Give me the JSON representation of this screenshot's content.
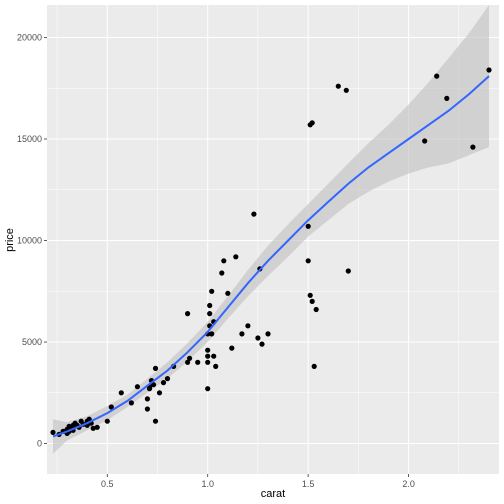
{
  "chart_data": {
    "type": "scatter",
    "xlabel": "carat",
    "ylabel": "price",
    "xlim": [
      0.2,
      2.45
    ],
    "ylim": [
      -1500,
      21600
    ],
    "x_ticks": [
      0.5,
      1.0,
      1.5,
      2.0
    ],
    "x_tick_labels": [
      "0.5",
      "1.0",
      "1.5",
      "2.0"
    ],
    "y_ticks": [
      0,
      5000,
      10000,
      15000,
      20000
    ],
    "y_tick_labels": [
      "0",
      "5000",
      "10000",
      "15000",
      "20000"
    ],
    "grid": true,
    "panel_background": "#ebebeb",
    "point_color": "#000000",
    "smooth_color": "#3366ff",
    "ribbon_color": "#bfbfbf",
    "points": [
      [
        0.23,
        550
      ],
      [
        0.26,
        450
      ],
      [
        0.28,
        600
      ],
      [
        0.3,
        700
      ],
      [
        0.3,
        500
      ],
      [
        0.31,
        850
      ],
      [
        0.31,
        600
      ],
      [
        0.32,
        800
      ],
      [
        0.33,
        650
      ],
      [
        0.33,
        900
      ],
      [
        0.34,
        1000
      ],
      [
        0.35,
        900
      ],
      [
        0.36,
        800
      ],
      [
        0.37,
        1100
      ],
      [
        0.38,
        950
      ],
      [
        0.4,
        900
      ],
      [
        0.4,
        1100
      ],
      [
        0.41,
        1200
      ],
      [
        0.42,
        1000
      ],
      [
        0.43,
        750
      ],
      [
        0.45,
        800
      ],
      [
        0.5,
        1100
      ],
      [
        0.52,
        1800
      ],
      [
        0.57,
        2500
      ],
      [
        0.62,
        2000
      ],
      [
        0.65,
        2800
      ],
      [
        0.7,
        1700
      ],
      [
        0.7,
        2200
      ],
      [
        0.71,
        2700
      ],
      [
        0.71,
        2800
      ],
      [
        0.72,
        3100
      ],
      [
        0.73,
        2900
      ],
      [
        0.74,
        3700
      ],
      [
        0.74,
        1100
      ],
      [
        0.76,
        2500
      ],
      [
        0.78,
        3000
      ],
      [
        0.8,
        3200
      ],
      [
        0.83,
        3800
      ],
      [
        0.9,
        4000
      ],
      [
        0.9,
        6400
      ],
      [
        0.91,
        4200
      ],
      [
        0.95,
        4000
      ],
      [
        1.0,
        2700
      ],
      [
        1.0,
        4000
      ],
      [
        1.0,
        4300
      ],
      [
        1.0,
        4600
      ],
      [
        1.0,
        5400
      ],
      [
        1.01,
        6400
      ],
      [
        1.01,
        6800
      ],
      [
        1.01,
        5800
      ],
      [
        1.02,
        7500
      ],
      [
        1.02,
        5400
      ],
      [
        1.03,
        4300
      ],
      [
        1.03,
        6000
      ],
      [
        1.04,
        3800
      ],
      [
        1.07,
        8400
      ],
      [
        1.08,
        9000
      ],
      [
        1.1,
        7400
      ],
      [
        1.12,
        4700
      ],
      [
        1.14,
        9200
      ],
      [
        1.17,
        5400
      ],
      [
        1.2,
        5800
      ],
      [
        1.23,
        11300
      ],
      [
        1.25,
        5200
      ],
      [
        1.26,
        8600
      ],
      [
        1.27,
        4900
      ],
      [
        1.3,
        5400
      ],
      [
        1.5,
        10700
      ],
      [
        1.5,
        9000
      ],
      [
        1.51,
        7300
      ],
      [
        1.51,
        15700
      ],
      [
        1.52,
        15800
      ],
      [
        1.52,
        7000
      ],
      [
        1.53,
        3800
      ],
      [
        1.54,
        6600
      ],
      [
        1.65,
        17600
      ],
      [
        1.69,
        17400
      ],
      [
        1.7,
        8500
      ],
      [
        2.08,
        14900
      ],
      [
        2.14,
        18100
      ],
      [
        2.19,
        17000
      ],
      [
        2.32,
        14600
      ],
      [
        2.4,
        18400
      ]
    ],
    "smooth": [
      [
        0.23,
        350
      ],
      [
        0.3,
        600
      ],
      [
        0.4,
        1000
      ],
      [
        0.5,
        1500
      ],
      [
        0.6,
        2100
      ],
      [
        0.7,
        2850
      ],
      [
        0.8,
        3600
      ],
      [
        0.9,
        4500
      ],
      [
        1.0,
        5500
      ],
      [
        1.1,
        6700
      ],
      [
        1.2,
        7900
      ],
      [
        1.3,
        9000
      ],
      [
        1.4,
        10000
      ],
      [
        1.5,
        11000
      ],
      [
        1.6,
        11900
      ],
      [
        1.7,
        12800
      ],
      [
        1.8,
        13600
      ],
      [
        1.9,
        14300
      ],
      [
        2.0,
        15000
      ],
      [
        2.1,
        15700
      ],
      [
        2.2,
        16400
      ],
      [
        2.3,
        17200
      ],
      [
        2.4,
        18100
      ]
    ],
    "ribbon": [
      [
        0.23,
        -500,
        1200
      ],
      [
        0.3,
        150,
        1050
      ],
      [
        0.4,
        650,
        1350
      ],
      [
        0.5,
        1150,
        1850
      ],
      [
        0.6,
        1800,
        2400
      ],
      [
        0.7,
        2500,
        3200
      ],
      [
        0.8,
        3200,
        4000
      ],
      [
        0.9,
        4050,
        4950
      ],
      [
        1.0,
        5000,
        6000
      ],
      [
        1.1,
        6150,
        7250
      ],
      [
        1.2,
        7250,
        8550
      ],
      [
        1.3,
        8250,
        9750
      ],
      [
        1.4,
        9200,
        10800
      ],
      [
        1.5,
        10200,
        11800
      ],
      [
        1.6,
        11000,
        12800
      ],
      [
        1.7,
        11800,
        13800
      ],
      [
        1.8,
        12400,
        14800
      ],
      [
        1.9,
        12900,
        15700
      ],
      [
        2.0,
        13300,
        16700
      ],
      [
        2.1,
        13600,
        17800
      ],
      [
        2.2,
        13800,
        19000
      ],
      [
        2.3,
        14200,
        20200
      ],
      [
        2.4,
        14600,
        21600
      ]
    ]
  }
}
